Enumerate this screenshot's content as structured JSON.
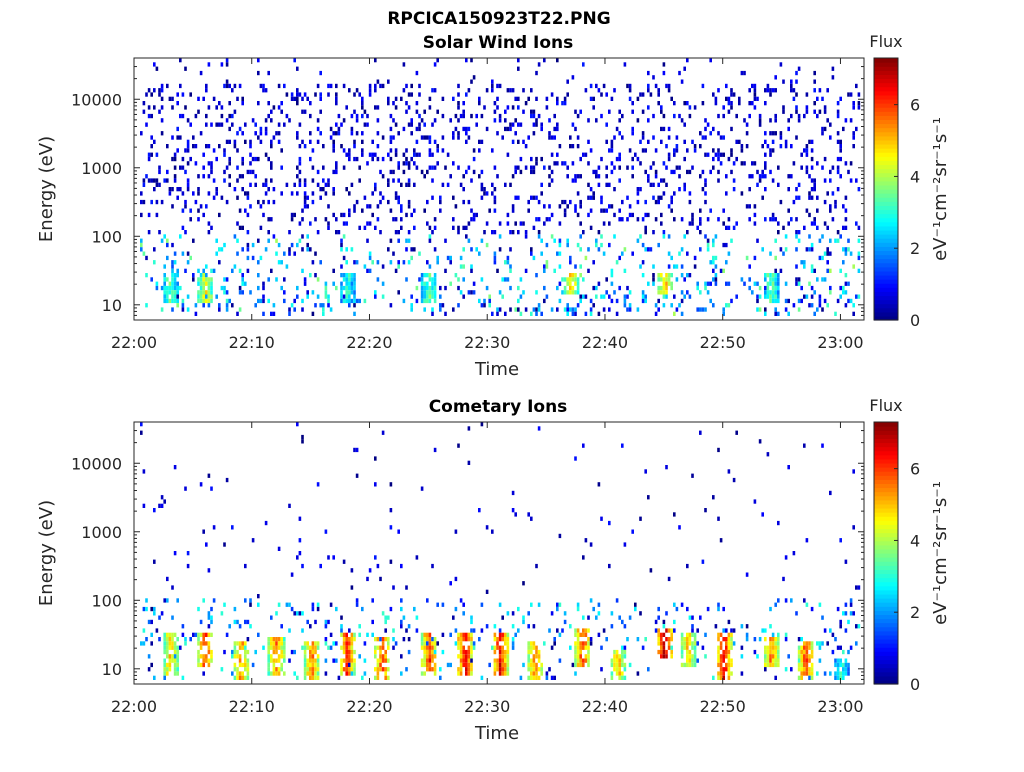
{
  "figure_title": "RPCICA150923T22.PNG",
  "chart_data": [
    {
      "type": "heatmap",
      "title": "Solar Wind Ions",
      "xlabel": "Time",
      "ylabel": "Energy (eV)",
      "x_range": [
        "22:00",
        "23:02"
      ],
      "y_range": [
        6,
        40000
      ],
      "y_scale": "log",
      "x_ticks": [
        "22:00",
        "22:10",
        "22:20",
        "22:30",
        "22:40",
        "22:50",
        "23:00"
      ],
      "y_ticks": [
        {
          "value": 10,
          "label": "10"
        },
        {
          "value": 100,
          "label": "100"
        },
        {
          "value": 1000,
          "label": "1000"
        },
        {
          "value": 10000,
          "label": "10000"
        }
      ],
      "colorbar": {
        "label": "Flux",
        "units": "eV⁻¹cm⁻²sr⁻¹s⁻¹",
        "range": [
          0,
          7.3
        ],
        "ticks": [
          "0",
          "2",
          "4",
          "6"
        ],
        "colormap": "jet"
      },
      "dominant_features": "sparse low-flux counts (0-2) across all energies; moderate flux (2-5) near 10-40 eV",
      "bursts": [
        {
          "time": "22:03",
          "energy_low": 10,
          "energy_high": 30,
          "flux": 3.5
        },
        {
          "time": "22:06",
          "energy_low": 10,
          "energy_high": 30,
          "flux": 4.5
        },
        {
          "time": "22:18",
          "energy_low": 10,
          "energy_high": 30,
          "flux": 3.0
        },
        {
          "time": "22:25",
          "energy_low": 10,
          "energy_high": 30,
          "flux": 3.5
        },
        {
          "time": "22:37",
          "energy_low": 15,
          "energy_high": 30,
          "flux": 5.0
        },
        {
          "time": "22:45",
          "energy_low": 15,
          "energy_high": 30,
          "flux": 5.0
        },
        {
          "time": "22:54",
          "energy_low": 10,
          "energy_high": 30,
          "flux": 3.5
        }
      ]
    },
    {
      "type": "heatmap",
      "title": "Cometary Ions",
      "xlabel": "Time",
      "ylabel": "Energy (eV)",
      "x_range": [
        "22:00",
        "23:02"
      ],
      "y_range": [
        6,
        40000
      ],
      "y_scale": "log",
      "x_ticks": [
        "22:00",
        "22:10",
        "22:20",
        "22:30",
        "22:40",
        "22:50",
        "23:00"
      ],
      "y_ticks": [
        {
          "value": 10,
          "label": "10"
        },
        {
          "value": 100,
          "label": "100"
        },
        {
          "value": 1000,
          "label": "1000"
        },
        {
          "value": 10000,
          "label": "10000"
        }
      ],
      "colorbar": {
        "label": "Flux",
        "units": "eV⁻¹cm⁻²sr⁻¹s⁻¹",
        "range": [
          0,
          7.3
        ],
        "ticks": [
          "0",
          "2",
          "4",
          "6"
        ],
        "colormap": "jet"
      },
      "dominant_features": "intense cometary ion bursts (flux 5-7) between 10 and 35 eV; sparse counts up to 10000 eV",
      "bursts": [
        {
          "time": "22:03",
          "energy_low": 8,
          "energy_high": 35,
          "flux": 5.0
        },
        {
          "time": "22:06",
          "energy_low": 10,
          "energy_high": 35,
          "flux": 6.0
        },
        {
          "time": "22:09",
          "energy_low": 6,
          "energy_high": 25,
          "flux": 5.5
        },
        {
          "time": "22:12",
          "energy_low": 8,
          "energy_high": 30,
          "flux": 5.5
        },
        {
          "time": "22:15",
          "energy_low": 6,
          "energy_high": 25,
          "flux": 5.5
        },
        {
          "time": "22:18",
          "energy_low": 8,
          "energy_high": 35,
          "flux": 6.0
        },
        {
          "time": "22:21",
          "energy_low": 6,
          "energy_high": 30,
          "flux": 6.0
        },
        {
          "time": "22:25",
          "energy_low": 8,
          "energy_high": 35,
          "flux": 6.0
        },
        {
          "time": "22:28",
          "energy_low": 8,
          "energy_high": 35,
          "flux": 6.5
        },
        {
          "time": "22:31",
          "energy_low": 8,
          "energy_high": 35,
          "flux": 6.5
        },
        {
          "time": "22:34",
          "energy_low": 6,
          "energy_high": 25,
          "flux": 5.5
        },
        {
          "time": "22:38",
          "energy_low": 10,
          "energy_high": 40,
          "flux": 6.0
        },
        {
          "time": "22:41",
          "energy_low": 6,
          "energy_high": 20,
          "flux": 5.0
        },
        {
          "time": "22:45",
          "energy_low": 15,
          "energy_high": 40,
          "flux": 7.0
        },
        {
          "time": "22:47",
          "energy_low": 10,
          "energy_high": 35,
          "flux": 5.0
        },
        {
          "time": "22:50",
          "energy_low": 6,
          "energy_high": 35,
          "flux": 6.5
        },
        {
          "time": "22:54",
          "energy_low": 10,
          "energy_high": 30,
          "flux": 5.5
        },
        {
          "time": "22:57",
          "energy_low": 6,
          "energy_high": 25,
          "flux": 6.0
        },
        {
          "time": "23:00",
          "energy_low": 6,
          "energy_high": 15,
          "flux": 3.0
        }
      ]
    }
  ]
}
